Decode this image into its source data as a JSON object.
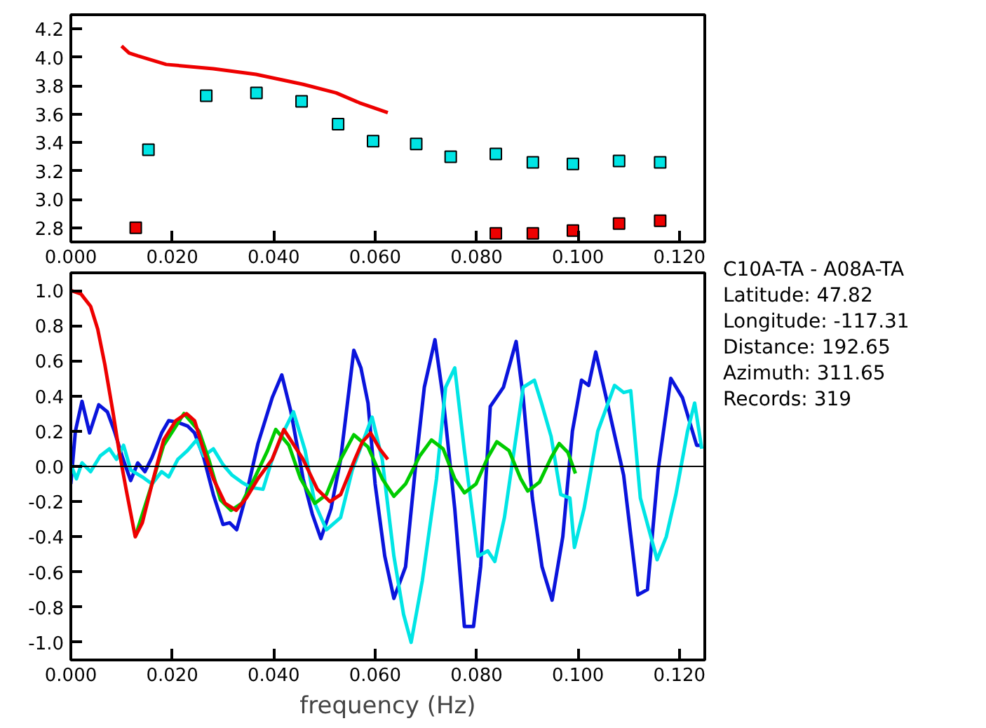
{
  "chart_data": [
    {
      "type": "scatter",
      "xlim": [
        0,
        0.125
      ],
      "ylim": [
        2.7,
        4.3
      ],
      "xticks": [
        {
          "value": 0,
          "label": "0.000"
        },
        {
          "value": 0.02,
          "label": "0.020"
        },
        {
          "value": 0.04,
          "label": "0.040"
        },
        {
          "value": 0.06,
          "label": "0.060"
        },
        {
          "value": 0.08,
          "label": "0.080"
        },
        {
          "value": 0.1,
          "label": "0.100"
        },
        {
          "value": 0.12,
          "label": "0.120"
        }
      ],
      "yticks": [
        2.8,
        {
          "value": 3.0,
          "label": "3.0"
        },
        3.2,
        3.4,
        3.6,
        3.8,
        {
          "value": 4.0,
          "label": "4.0"
        },
        4.2
      ],
      "series": [
        {
          "type": "scatter",
          "marker": "square",
          "color": "#00e5e5",
          "x": [
            0.0153,
            0.0267,
            0.0366,
            0.0455,
            0.0527,
            0.0596,
            0.0681,
            0.0749,
            0.0838,
            0.0911,
            0.099,
            0.1081,
            0.1162
          ],
          "values": [
            3.35,
            3.73,
            3.75,
            3.69,
            3.53,
            3.41,
            3.39,
            3.3,
            3.32,
            3.26,
            3.25,
            3.27,
            3.26
          ]
        },
        {
          "type": "scatter",
          "marker": "square",
          "color": "#ee0000",
          "x": [
            0.0128,
            0.0838,
            0.0911,
            0.099,
            0.1081,
            0.1162
          ],
          "values": [
            2.8,
            2.76,
            2.76,
            2.78,
            2.83,
            2.85
          ]
        },
        {
          "type": "line",
          "color": "#ee0000",
          "x": [
            0.01,
            0.0115,
            0.0132,
            0.0188,
            0.0281,
            0.0365,
            0.0458,
            0.0523,
            0.0569,
            0.0625
          ],
          "values": [
            4.08,
            4.03,
            4.01,
            3.95,
            3.92,
            3.88,
            3.81,
            3.75,
            3.68,
            3.61
          ]
        }
      ]
    },
    {
      "type": "line",
      "xlim": [
        0,
        0.125
      ],
      "ylim": [
        -1.1,
        1.1
      ],
      "xlabel": "frequency (Hz)",
      "xticks": [
        {
          "value": 0,
          "label": "0.000"
        },
        {
          "value": 0.02,
          "label": "0.020"
        },
        {
          "value": 0.04,
          "label": "0.040"
        },
        {
          "value": 0.06,
          "label": "0.060"
        },
        {
          "value": 0.08,
          "label": "0.080"
        },
        {
          "value": 0.1,
          "label": "0.100"
        },
        {
          "value": 0.12,
          "label": "0.120"
        }
      ],
      "yticks": [
        {
          "value": -1.0,
          "label": "-1.0"
        },
        {
          "value": -0.8,
          "label": "-0.8"
        },
        {
          "value": -0.6,
          "label": "-0.6"
        },
        {
          "value": -0.4,
          "label": "-0.4"
        },
        {
          "value": -0.2,
          "label": "-0.2"
        },
        {
          "value": 0,
          "label": "0.0"
        },
        {
          "value": 0.2,
          "label": "0.2"
        },
        {
          "value": 0.4,
          "label": "0.4"
        },
        {
          "value": 0.6,
          "label": "0.6"
        },
        {
          "value": 0.8,
          "label": "0.8"
        },
        {
          "value": 1.0,
          "label": "1.0"
        }
      ],
      "ref_lines": [
        {
          "axis": "y",
          "value": 0,
          "color": "#000000"
        }
      ],
      "series": [
        {
          "color": "#0a14dc",
          "x": [
            0,
            0.0009,
            0.0022,
            0.0037,
            0.0055,
            0.0072,
            0.0086,
            0.0102,
            0.0118,
            0.0132,
            0.0146,
            0.016,
            0.0179,
            0.0193,
            0.0211,
            0.023,
            0.0244,
            0.0262,
            0.0281,
            0.03,
            0.0313,
            0.0327,
            0.0346,
            0.0369,
            0.0397,
            0.0416,
            0.0434,
            0.0458,
            0.0476,
            0.0493,
            0.0513,
            0.0532,
            0.0558,
            0.0572,
            0.0586,
            0.06,
            0.0619,
            0.0637,
            0.066,
            0.0679,
            0.0697,
            0.0718,
            0.0734,
            0.0757,
            0.0776,
            0.0794,
            0.0808,
            0.0827,
            0.0853,
            0.0878,
            0.0892,
            0.091,
            0.0929,
            0.0949,
            0.097,
            0.0989,
            0.1007,
            0.1021,
            0.1035,
            0.1058,
            0.109,
            0.1118,
            0.1137,
            0.1158,
            0.1183,
            0.1206,
            0.1234,
            0.1243
          ],
          "values": [
            -0.1,
            0.2,
            0.37,
            0.19,
            0.35,
            0.31,
            0.2,
            0.05,
            -0.08,
            0.02,
            -0.03,
            0.05,
            0.19,
            0.26,
            0.25,
            0.23,
            0.19,
            0.05,
            -0.16,
            -0.33,
            -0.32,
            -0.36,
            -0.16,
            0.13,
            0.39,
            0.52,
            0.31,
            -0.07,
            -0.27,
            -0.41,
            -0.24,
            0.04,
            0.66,
            0.56,
            0.36,
            -0.1,
            -0.51,
            -0.75,
            -0.57,
            -0.02,
            0.45,
            0.72,
            0.39,
            -0.24,
            -0.91,
            -0.91,
            -0.57,
            0.34,
            0.45,
            0.71,
            0.39,
            -0.18,
            -0.57,
            -0.76,
            -0.4,
            0.2,
            0.49,
            0.46,
            0.65,
            0.36,
            -0.05,
            -0.73,
            -0.7,
            -0.02,
            0.5,
            0.39,
            0.12,
            0.12
          ]
        },
        {
          "color": "#00e5e5",
          "x": [
            0,
            0.0011,
            0.0022,
            0.0039,
            0.0058,
            0.0076,
            0.009,
            0.0104,
            0.0118,
            0.0141,
            0.016,
            0.0179,
            0.0193,
            0.0211,
            0.023,
            0.0248,
            0.0262,
            0.0281,
            0.03,
            0.0318,
            0.0337,
            0.0355,
            0.0379,
            0.0397,
            0.042,
            0.0439,
            0.0462,
            0.0481,
            0.0504,
            0.0532,
            0.0555,
            0.0594,
            0.0614,
            0.0637,
            0.0656,
            0.0671,
            0.0693,
            0.0721,
            0.0739,
            0.0757,
            0.0776,
            0.0803,
            0.0822,
            0.0836,
            0.0855,
            0.0892,
            0.0914,
            0.0928,
            0.0947,
            0.0966,
            0.0984,
            0.0993,
            0.1012,
            0.1039,
            0.1072,
            0.109,
            0.1104,
            0.1123,
            0.1156,
            0.1174,
            0.1193,
            0.1216,
            0.123,
            0.1244
          ],
          "values": [
            0.01,
            -0.07,
            0.02,
            -0.03,
            0.06,
            0.1,
            0.04,
            0.12,
            -0.02,
            -0.06,
            -0.1,
            -0.03,
            -0.06,
            0.04,
            0.09,
            0.15,
            0.06,
            0.1,
            0.01,
            -0.05,
            -0.09,
            -0.12,
            -0.13,
            0.04,
            0.2,
            0.31,
            0.09,
            -0.21,
            -0.36,
            -0.29,
            -0.02,
            0.28,
            0.04,
            -0.51,
            -0.84,
            -1.0,
            -0.65,
            -0.07,
            0.45,
            0.56,
            0.09,
            -0.51,
            -0.48,
            -0.54,
            -0.29,
            0.45,
            0.49,
            0.36,
            0.17,
            -0.16,
            -0.18,
            -0.46,
            -0.24,
            0.2,
            0.46,
            0.42,
            0.43,
            -0.18,
            -0.53,
            -0.4,
            -0.16,
            0.2,
            0.36,
            0.1
          ]
        },
        {
          "color": "#00cc00",
          "x": [
            0.0127,
            0.016,
            0.0183,
            0.0223,
            0.0253,
            0.0272,
            0.0295,
            0.0316,
            0.0337,
            0.0365,
            0.0388,
            0.0404,
            0.043,
            0.0453,
            0.0481,
            0.0504,
            0.0532,
            0.0558,
            0.0586,
            0.0614,
            0.0637,
            0.066,
            0.0688,
            0.0711,
            0.0734,
            0.0757,
            0.0776,
            0.0799,
            0.0822,
            0.084,
            0.0864,
            0.0887,
            0.0901,
            0.0924,
            0.0947,
            0.0963,
            0.098,
            0.0995
          ],
          "values": [
            -0.4,
            -0.1,
            0.12,
            0.3,
            0.2,
            0.04,
            -0.19,
            -0.25,
            -0.21,
            -0.05,
            0.09,
            0.21,
            0.12,
            -0.07,
            -0.21,
            -0.16,
            0.04,
            0.18,
            0.11,
            -0.07,
            -0.17,
            -0.1,
            0.06,
            0.15,
            0.1,
            -0.07,
            -0.15,
            -0.1,
            0.05,
            0.14,
            0.09,
            -0.07,
            -0.14,
            -0.09,
            0.05,
            0.13,
            0.08,
            -0.04
          ]
        },
        {
          "color": "#ee0000",
          "x": [
            0,
            0.002,
            0.0039,
            0.0053,
            0.0067,
            0.0083,
            0.0095,
            0.0109,
            0.0127,
            0.0141,
            0.016,
            0.0183,
            0.0207,
            0.0228,
            0.0244,
            0.0262,
            0.0281,
            0.0304,
            0.0326,
            0.0346,
            0.0369,
            0.0397,
            0.042,
            0.0458,
            0.0486,
            0.0511,
            0.0532,
            0.056,
            0.0575,
            0.0591,
            0.0609,
            0.0625
          ],
          "values": [
            1.0,
            0.98,
            0.91,
            0.78,
            0.58,
            0.31,
            0.09,
            -0.13,
            -0.4,
            -0.32,
            -0.1,
            0.15,
            0.26,
            0.3,
            0.26,
            0.09,
            -0.07,
            -0.21,
            -0.25,
            -0.18,
            -0.07,
            0.04,
            0.21,
            0.04,
            -0.13,
            -0.2,
            -0.16,
            0.04,
            0.14,
            0.19,
            0.1,
            0.04
          ]
        }
      ]
    },
    {
      "type": "other",
      "annotations": [
        "C10A-TA - A08A-TA",
        "Latitude: 47.82",
        "Longitude: -117.31",
        "Distance: 192.65",
        "Azimuth: 311.65",
        "Records: 319"
      ]
    }
  ]
}
